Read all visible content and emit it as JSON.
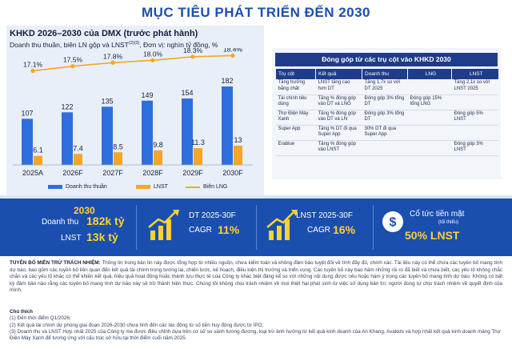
{
  "page_title": "MỤC TIÊU PHÁT TRIỂN ĐẾN 2030",
  "chart_data": {
    "type": "bar",
    "title": "KHKD 2026–2030 của DMX (trước phát hành)",
    "subtitle_pre": "Doanh thu thuần, biên LN gộp và LNST",
    "subtitle_sup": "(2)(3)",
    "subtitle_post": ", Đơn vị: nghìn tỷ đồng, %",
    "categories": [
      "2025A",
      "2026F",
      "2027F",
      "2028F",
      "2029F",
      "2030F"
    ],
    "series": [
      {
        "name": "Doanh thu thuần",
        "color": "#2f6fdb",
        "values": [
          107,
          122,
          135,
          149,
          154,
          182
        ],
        "labels": [
          "107",
          "122",
          "135",
          "149",
          "154",
          "182"
        ]
      },
      {
        "name": "LNST",
        "color": "#f5a623",
        "values": [
          6.1,
          7.4,
          8.5,
          9.8,
          11.3,
          13
        ],
        "labels": [
          "6.1",
          "7.4",
          "8.5",
          "9.8",
          "11.3",
          "13"
        ]
      },
      {
        "name": "Biên LNG",
        "color": "#f5a623",
        "type": "line",
        "values": [
          17.1,
          17.5,
          17.8,
          18.0,
          18.3,
          18.4
        ],
        "labels": [
          "17.1%",
          "17.5%",
          "17.8%",
          "18.0%",
          "18.3%",
          "18.4%"
        ]
      }
    ]
  },
  "pillars": {
    "title": "Đóng góp từ các trụ cột vào KHKD 2030",
    "headers": [
      "Trụ cột",
      "Kết quả",
      "Doanh thu",
      "LNG",
      "LNST"
    ],
    "rows": [
      [
        "Tăng trưởng bằng chất",
        "LNST tăng cao hơn DT",
        "Tăng 1,7x so với DT 2025",
        "",
        "Tăng 2,1x so với LNST 2025"
      ],
      [
        "Tài chính tiêu dùng",
        "Tăng % đóng góp vào DT và LNG",
        "Đóng góp 3% tổng DT",
        "Đóng góp 15% tổng LNG",
        ""
      ],
      [
        "Thợ Điện Máy Xanh",
        "Tăng % đóng góp vào DT và LN",
        "Đóng góp 3% tổng DT",
        "",
        "Đóng góp 5% LNST"
      ],
      [
        "Super App",
        "Tăng % DT đi qua Super App",
        "30% DT đi qua Super App",
        "",
        ""
      ],
      [
        "Erablue",
        "Tăng % đóng góp vào LNST",
        "",
        "",
        "Đóng góp 3% LNST"
      ]
    ]
  },
  "kpis": {
    "year": "2030",
    "revenue_label": "Doanh thu",
    "revenue_value": "182k tỷ",
    "profit_label": "LNST",
    "profit_value": "13k tỷ",
    "dt_label": "DT 2025-30F",
    "dt_cagr_label": "CAGR",
    "dt_cagr_value": "11%",
    "lnst_label": "LNST 2025-30F",
    "lnst_cagr_label": "CAGR",
    "lnst_cagr_value": "16%",
    "dividend_label": "Cổ tức tiền mặt",
    "dividend_note": "(tối thiểu)",
    "dividend_value": "50% LNST"
  },
  "disclaimer": {
    "heading": "TUYÊN BỐ MIỄN TRỪ TRÁCH NHIỆM:",
    "body": " Thông tin trong bản tin này được tổng hợp từ nhiều nguồn, chưa kiểm toán và không đảm bảo tuyệt đối về tính đầy đủ, chính xác. Tài liệu này có thể chứa các tuyên bố mang tính dự báo, bao gồm các tuyên bố liên quan đến kết quả tài chính trong tương lai, chiến lược, kế hoạch, điều kiện thị trường và triển vọng. Các tuyên bố này bao hàm những rủi ro đã biết và chưa biết, các yếu tố không chắc chắn và các yếu tố khác có thể khiến kết quả, hiệu quả hoạt động hoặc thành tựu thực tế của Công ty khác biệt đáng kể so với những nội dung được nêu hoặc hàm ý trong các tuyên bố mang tính dự báo. Không có bất kỳ đảm bảo nào rằng các tuyên bố mang tính dự báo này sẽ trở thành hiện thực. Chúng tôi không chịu trách nhiệm về mọi thiệt hại phát sinh từ việc sử dụng bản tin; người dùng tự chịu trách nhiệm về quyết định của mình."
  },
  "notes": {
    "heading": "Chú thích",
    "items": [
      "(1) Đến thời điểm Q1/2026;",
      "(2) Kết quả tài chính dự phóng giai đoạn 2026-2030 chưa tính đến các tác động từ số tiền huy động được từ IPO;",
      "(3) Doanh thu và LNST Hợp nhất 2025 của Công ty me được điều chỉnh dựa trên cơ sở so sánh tương đương, loại trừ ảnh hưởng từ kết quả kinh doanh của An Khang, Avakids và hợp nhất kết quả kinh doanh mảng Thợ Điện Máy Xanh để tương ứng với cấu trúc sở hữu tại thời điểm cuối năm 2025."
    ]
  }
}
